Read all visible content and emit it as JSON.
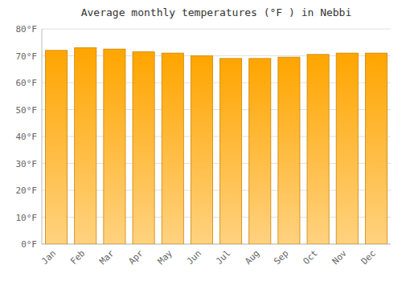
{
  "chart_data": {
    "type": "bar",
    "title": "Average monthly temperatures (°F ) in Nebbi",
    "categories": [
      "Jan",
      "Feb",
      "Mar",
      "Apr",
      "May",
      "Jun",
      "Jul",
      "Aug",
      "Sep",
      "Oct",
      "Nov",
      "Dec"
    ],
    "values": [
      72,
      73,
      72.5,
      71.5,
      71,
      70,
      69,
      69,
      69.5,
      70.5,
      71,
      71
    ],
    "color": "#FFA500",
    "ylim": [
      0,
      80
    ],
    "yticks": [
      {
        "value": 0,
        "label": "0°F"
      },
      {
        "value": 10,
        "label": "10°F"
      },
      {
        "value": 20,
        "label": "20°F"
      },
      {
        "value": 30,
        "label": "30°F"
      },
      {
        "value": 40,
        "label": "40°F"
      },
      {
        "value": 50,
        "label": "50°F"
      },
      {
        "value": 60,
        "label": "60°F"
      },
      {
        "value": 70,
        "label": "70°F"
      },
      {
        "value": 80,
        "label": "80°F"
      }
    ],
    "grid": true
  }
}
